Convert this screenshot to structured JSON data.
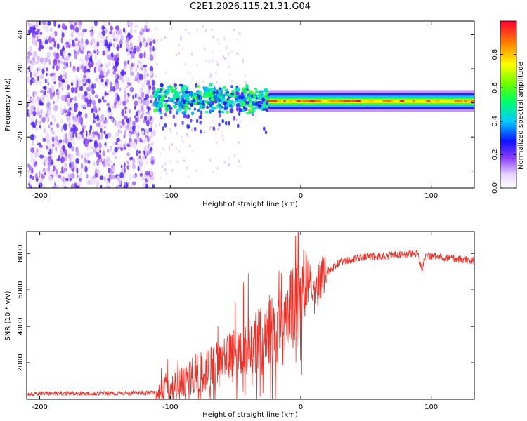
{
  "figure_title": "C2E1.2026.115.21.31.G04",
  "colors": {
    "snr_line": "#e8332b",
    "axis": "#000000",
    "background": "#ffffff"
  },
  "chart_data": [
    {
      "type": "heatmap",
      "title": "C2E1.2026.115.21.31.G04",
      "xlabel": "Height of straight line (km)",
      "ylabel": "Frequency (Hz)",
      "xlim": [
        -210,
        133
      ],
      "ylim": [
        -50,
        48
      ],
      "xticks": [
        -200,
        -100,
        0,
        100
      ],
      "yticks": [
        -40,
        -20,
        0,
        20,
        40
      ],
      "colorbar": {
        "label": "Normalized spectral amplitude",
        "range": [
          0,
          1
        ],
        "ticks": [
          "0.0",
          "0.2",
          "0.4",
          "0.6",
          "0.8"
        ],
        "tick_values": [
          0.0,
          0.2,
          0.4,
          0.6,
          0.8
        ],
        "colormap": "rainbow"
      },
      "regions": [
        {
          "name": "noise",
          "x_range": [
            -210,
            -112
          ],
          "freq_range": [
            -50,
            48
          ],
          "amplitude": [
            0.05,
            0.25
          ]
        },
        {
          "name": "fragmented-signal",
          "x_range": [
            -112,
            -25
          ],
          "center_freq": 2,
          "width_hz": 9,
          "amplitude": [
            0.2,
            0.6
          ]
        },
        {
          "name": "steady-carrier",
          "x_range": [
            -25,
            133
          ],
          "center_freq": 1,
          "width_hz": 5,
          "amplitude": [
            0.7,
            1.0
          ]
        }
      ]
    },
    {
      "type": "line",
      "xlabel": "Height of straight line (km)",
      "ylabel": "SNR (10 * v/v)",
      "xlim": [
        -210,
        133
      ],
      "ylim": [
        0,
        9200
      ],
      "xticks": [
        -200,
        -100,
        0,
        100
      ],
      "yticks": [
        2000,
        4000,
        6000,
        8000
      ],
      "series": [
        {
          "name": "SNR",
          "color": "#e8332b",
          "x": [
            -210,
            -180,
            -150,
            -120,
            -110,
            -100,
            -90,
            -80,
            -70,
            -60,
            -50,
            -40,
            -30,
            -25,
            -20,
            -15,
            -10,
            -5,
            0,
            5,
            10,
            15,
            20,
            30,
            40,
            50,
            60,
            70,
            80,
            85,
            90,
            93,
            95,
            100,
            110,
            120,
            133
          ],
          "y": [
            300,
            320,
            330,
            340,
            380,
            600,
            1000,
            1400,
            1700,
            2000,
            2400,
            2900,
            3300,
            4000,
            3500,
            4200,
            4800,
            5500,
            6200,
            6700,
            5600,
            6600,
            7000,
            7500,
            7700,
            7800,
            7850,
            7900,
            7950,
            8000,
            7950,
            7100,
            7800,
            7850,
            7800,
            7700,
            7600
          ]
        }
      ],
      "grid": false
    }
  ]
}
